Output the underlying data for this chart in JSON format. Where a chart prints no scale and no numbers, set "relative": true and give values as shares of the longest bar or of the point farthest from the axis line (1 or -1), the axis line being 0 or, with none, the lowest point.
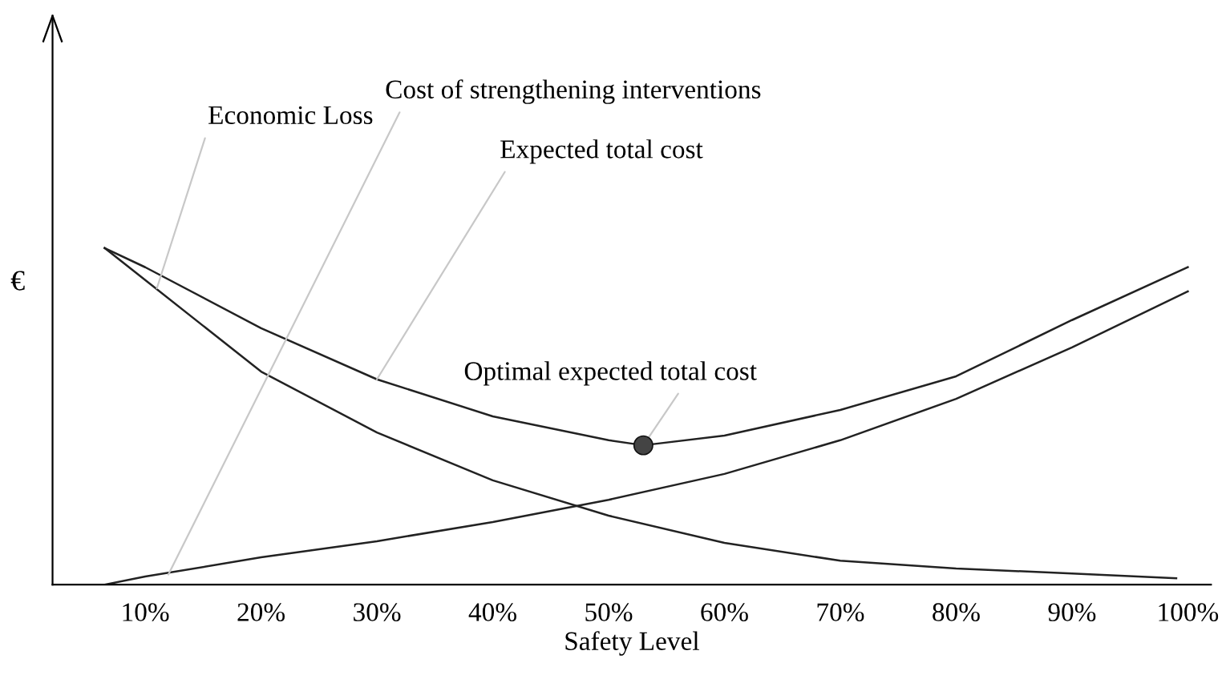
{
  "chart_data": {
    "type": "line",
    "relative": true,
    "xlabel": "Safety Level",
    "ylabel": "€",
    "xlim": [
      2,
      102
    ],
    "xticks": [
      {
        "value": 10,
        "label": "10%"
      },
      {
        "value": 20,
        "label": "20%"
      },
      {
        "value": 30,
        "label": "30%"
      },
      {
        "value": 40,
        "label": "40%"
      },
      {
        "value": 50,
        "label": "50%"
      },
      {
        "value": 60,
        "label": "60%"
      },
      {
        "value": 70,
        "label": "70%"
      },
      {
        "value": 80,
        "label": "80%"
      },
      {
        "value": 90,
        "label": "90%"
      },
      {
        "value": 100,
        "label": "100%"
      }
    ],
    "grid": false,
    "legend": false,
    "line_style": "solid",
    "series": [
      {
        "color": "#222222",
        "x": [
          6.5,
          10,
          20,
          30,
          40,
          50,
          60,
          70,
          80,
          90,
          99
        ],
        "values": [
          1.0,
          0.905,
          0.633,
          0.452,
          0.31,
          0.205,
          0.124,
          0.071,
          0.048,
          0.033,
          0.019
        ]
      },
      {
        "color": "#222222",
        "x": [
          6.5,
          10,
          20,
          30,
          40,
          50,
          60,
          70,
          80,
          90,
          100
        ],
        "values": [
          0,
          0.024,
          0.081,
          0.129,
          0.186,
          0.252,
          0.329,
          0.429,
          0.552,
          0.705,
          0.871
        ]
      },
      {
        "color": "#222222",
        "x": [
          6.5,
          10,
          20,
          30,
          40,
          50,
          53,
          60,
          70,
          80,
          90,
          100
        ],
        "values": [
          1.0,
          0.943,
          0.762,
          0.61,
          0.5,
          0.429,
          0.414,
          0.443,
          0.519,
          0.619,
          0.786,
          0.943
        ]
      },
      {
        "type": "scatter",
        "marker": "circle",
        "color": "#444444",
        "x": [
          53
        ],
        "values": [
          0.414
        ]
      }
    ],
    "annotations": [
      {
        "text": "Economic Loss",
        "x": 11,
        "y": 0.88
      },
      {
        "text": "Cost of strengthening interventions",
        "x": 12,
        "y": 0.03
      },
      {
        "text": "Expected total cost",
        "x": 30,
        "y": 0.61
      },
      {
        "text": "Optimal expected total cost",
        "x": 53,
        "y": 0.414
      }
    ]
  }
}
